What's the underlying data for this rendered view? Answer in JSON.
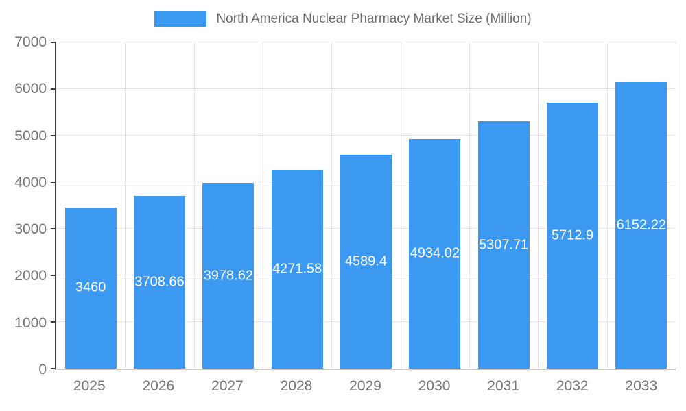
{
  "legend": {
    "title": "North America Nuclear Pharmacy Market Size (Million)"
  },
  "chart_data": {
    "type": "bar",
    "title": "North America Nuclear Pharmacy Market Size (Million)",
    "categories": [
      "2025",
      "2026",
      "2027",
      "2028",
      "2029",
      "2030",
      "2031",
      "2032",
      "2033"
    ],
    "values": [
      3460,
      3708.66,
      3978.62,
      4271.58,
      4589.4,
      4934.02,
      5307.71,
      5712.9,
      6152.22
    ],
    "xlabel": "",
    "ylabel": "",
    "ylim": [
      0,
      7000
    ],
    "yticks": [
      0,
      1000,
      2000,
      3000,
      4000,
      5000,
      6000,
      7000
    ],
    "grid": true,
    "legend_position": "top",
    "bar_color": "#3b99f2",
    "value_label_color": "#ffffff",
    "axis_text_color": "#757575"
  }
}
